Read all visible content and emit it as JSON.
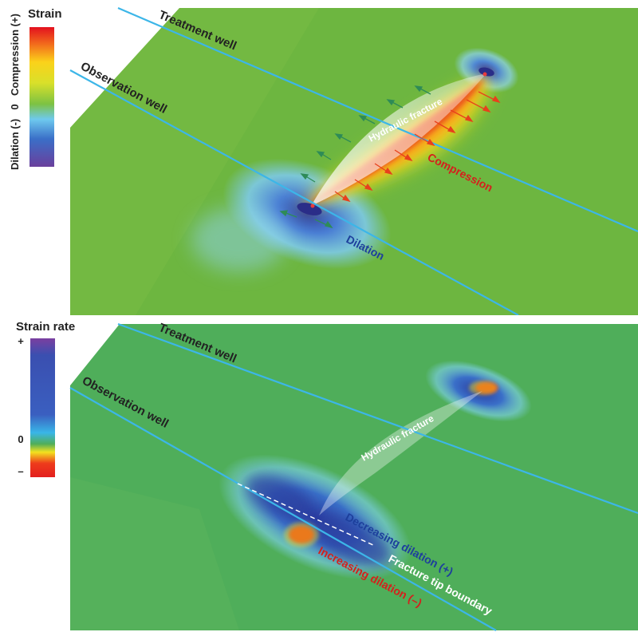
{
  "top_panel": {
    "legend": {
      "title": "Strain",
      "labels": {
        "compression": "Compression (+)",
        "zero": "0",
        "dilation": "Dilation (-)"
      }
    },
    "wells": {
      "treatment": "Treatment well",
      "observation": "Observation well"
    },
    "annotations": {
      "hydraulic_fracture": "Hydraulic fracture",
      "compression": "Compression",
      "dilation": "Dilation"
    }
  },
  "bottom_panel": {
    "legend": {
      "title": "Strain rate",
      "labels": {
        "plus": "+",
        "zero": "0",
        "minus": "–"
      }
    },
    "wells": {
      "treatment": "Treatment well",
      "observation": "Observation well"
    },
    "annotations": {
      "hydraulic_fracture": "Hydraulic fracture",
      "decreasing_dilation": "Decreasing dilation (+)",
      "increasing_dilation": "Increasing dilation (–)",
      "fracture_tip_boundary": "Fracture tip boundary"
    }
  },
  "colors": {
    "field_green": "#6fb63f",
    "field_green_bottom": "#4fae5a",
    "well_blue": "#3fb8e8",
    "compression_red": "#e8401c",
    "compression_orange": "#f6a21a",
    "dilation_blue": "#2f57b8",
    "dilation_light": "#6ec9ee",
    "legend_purple": "#7b3fa0"
  }
}
